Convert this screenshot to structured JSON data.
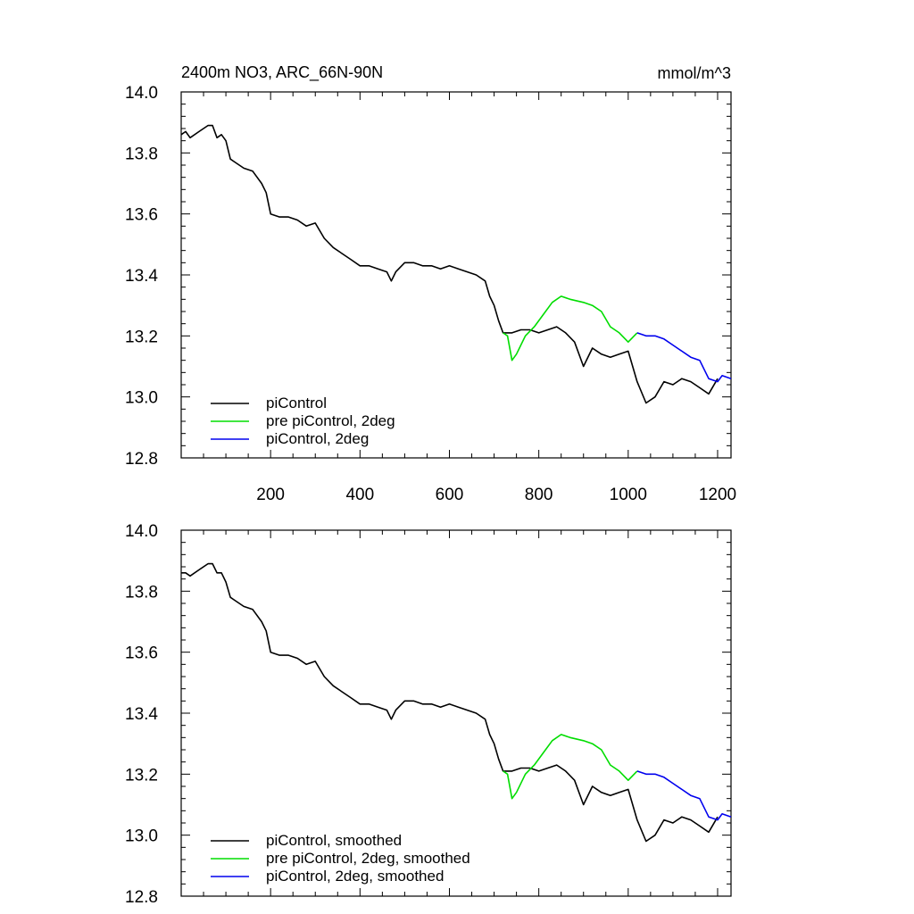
{
  "chart_data": [
    {
      "type": "line",
      "title": "2400m NO3, ARC_66N-90N",
      "units": "mmol/m^3",
      "xlim": [
        0,
        1230
      ],
      "ylim": [
        12.8,
        14.0
      ],
      "x_ticks": [
        200,
        400,
        600,
        800,
        1000,
        1200
      ],
      "y_ticks": [
        "12.8",
        "13.0",
        "13.2",
        "13.4",
        "13.6",
        "13.8",
        "14.0"
      ],
      "x_tick_labels_shown": true,
      "grid": false,
      "legend_position": "bottom-left",
      "series": [
        {
          "name": "piControl",
          "color": "#000000",
          "points": [
            [
              0,
              13.86
            ],
            [
              10,
              13.87
            ],
            [
              20,
              13.85
            ],
            [
              40,
              13.87
            ],
            [
              60,
              13.89
            ],
            [
              70,
              13.89
            ],
            [
              80,
              13.85
            ],
            [
              90,
              13.86
            ],
            [
              100,
              13.84
            ],
            [
              110,
              13.78
            ],
            [
              120,
              13.77
            ],
            [
              140,
              13.75
            ],
            [
              160,
              13.74
            ],
            [
              180,
              13.7
            ],
            [
              190,
              13.67
            ],
            [
              200,
              13.6
            ],
            [
              220,
              13.59
            ],
            [
              240,
              13.59
            ],
            [
              260,
              13.58
            ],
            [
              280,
              13.56
            ],
            [
              300,
              13.57
            ],
            [
              320,
              13.52
            ],
            [
              340,
              13.49
            ],
            [
              360,
              13.47
            ],
            [
              380,
              13.45
            ],
            [
              400,
              13.43
            ],
            [
              420,
              13.43
            ],
            [
              440,
              13.42
            ],
            [
              460,
              13.41
            ],
            [
              470,
              13.38
            ],
            [
              480,
              13.41
            ],
            [
              500,
              13.44
            ],
            [
              520,
              13.44
            ],
            [
              540,
              13.43
            ],
            [
              560,
              13.43
            ],
            [
              580,
              13.42
            ],
            [
              600,
              13.43
            ],
            [
              620,
              13.42
            ],
            [
              640,
              13.41
            ],
            [
              660,
              13.4
            ],
            [
              680,
              13.38
            ],
            [
              690,
              13.33
            ],
            [
              700,
              13.3
            ],
            [
              710,
              13.25
            ],
            [
              720,
              13.21
            ],
            [
              740,
              13.21
            ],
            [
              760,
              13.22
            ],
            [
              780,
              13.22
            ],
            [
              800,
              13.21
            ],
            [
              820,
              13.22
            ],
            [
              840,
              13.23
            ],
            [
              860,
              13.21
            ],
            [
              880,
              13.18
            ],
            [
              900,
              13.1
            ],
            [
              920,
              13.16
            ],
            [
              940,
              13.14
            ],
            [
              960,
              13.13
            ],
            [
              980,
              13.14
            ],
            [
              1000,
              13.15
            ],
            [
              1020,
              13.05
            ],
            [
              1040,
              12.98
            ],
            [
              1060,
              13.0
            ],
            [
              1080,
              13.05
            ],
            [
              1100,
              13.04
            ],
            [
              1120,
              13.06
            ],
            [
              1140,
              13.05
            ],
            [
              1160,
              13.03
            ],
            [
              1180,
              13.01
            ],
            [
              1200,
              13.06
            ]
          ]
        },
        {
          "name": "pre piControl, 2deg",
          "color": "#00dd00",
          "points": [
            [
              720,
              13.21
            ],
            [
              730,
              13.2
            ],
            [
              740,
              13.12
            ],
            [
              750,
              13.14
            ],
            [
              770,
              13.2
            ],
            [
              790,
              13.23
            ],
            [
              810,
              13.27
            ],
            [
              830,
              13.31
            ],
            [
              850,
              13.33
            ],
            [
              870,
              13.32
            ],
            [
              900,
              13.31
            ],
            [
              920,
              13.3
            ],
            [
              940,
              13.28
            ],
            [
              960,
              13.23
            ],
            [
              980,
              13.21
            ],
            [
              1000,
              13.18
            ],
            [
              1020,
              13.21
            ]
          ]
        },
        {
          "name": "piControl, 2deg",
          "color": "#0000ee",
          "points": [
            [
              1020,
              13.21
            ],
            [
              1040,
              13.2
            ],
            [
              1060,
              13.2
            ],
            [
              1080,
              13.19
            ],
            [
              1100,
              13.17
            ],
            [
              1120,
              13.15
            ],
            [
              1140,
              13.13
            ],
            [
              1160,
              13.12
            ],
            [
              1180,
              13.06
            ],
            [
              1200,
              13.05
            ],
            [
              1210,
              13.07
            ],
            [
              1230,
              13.06
            ]
          ]
        }
      ]
    },
    {
      "type": "line",
      "xlim": [
        0,
        1230
      ],
      "ylim": [
        12.8,
        14.0
      ],
      "x_ticks": [
        200,
        400,
        600,
        800,
        1000,
        1200
      ],
      "y_ticks": [
        "12.8",
        "13.0",
        "13.2",
        "13.4",
        "13.6",
        "13.8",
        "14.0"
      ],
      "x_tick_labels_shown": false,
      "grid": false,
      "legend_position": "bottom-left",
      "series": [
        {
          "name": "piControl, smoothed",
          "color": "#000000",
          "points": [
            [
              0,
              13.86
            ],
            [
              10,
              13.86
            ],
            [
              20,
              13.85
            ],
            [
              40,
              13.87
            ],
            [
              60,
              13.89
            ],
            [
              70,
              13.89
            ],
            [
              80,
              13.86
            ],
            [
              90,
              13.86
            ],
            [
              100,
              13.83
            ],
            [
              110,
              13.78
            ],
            [
              120,
              13.77
            ],
            [
              140,
              13.75
            ],
            [
              160,
              13.74
            ],
            [
              180,
              13.7
            ],
            [
              190,
              13.67
            ],
            [
              200,
              13.6
            ],
            [
              220,
              13.59
            ],
            [
              240,
              13.59
            ],
            [
              260,
              13.58
            ],
            [
              280,
              13.56
            ],
            [
              300,
              13.57
            ],
            [
              320,
              13.52
            ],
            [
              340,
              13.49
            ],
            [
              360,
              13.47
            ],
            [
              380,
              13.45
            ],
            [
              400,
              13.43
            ],
            [
              420,
              13.43
            ],
            [
              440,
              13.42
            ],
            [
              460,
              13.41
            ],
            [
              470,
              13.38
            ],
            [
              480,
              13.41
            ],
            [
              500,
              13.44
            ],
            [
              520,
              13.44
            ],
            [
              540,
              13.43
            ],
            [
              560,
              13.43
            ],
            [
              580,
              13.42
            ],
            [
              600,
              13.43
            ],
            [
              620,
              13.42
            ],
            [
              640,
              13.41
            ],
            [
              660,
              13.4
            ],
            [
              680,
              13.38
            ],
            [
              690,
              13.33
            ],
            [
              700,
              13.3
            ],
            [
              710,
              13.25
            ],
            [
              720,
              13.21
            ],
            [
              740,
              13.21
            ],
            [
              760,
              13.22
            ],
            [
              780,
              13.22
            ],
            [
              800,
              13.21
            ],
            [
              820,
              13.22
            ],
            [
              840,
              13.23
            ],
            [
              860,
              13.21
            ],
            [
              880,
              13.18
            ],
            [
              900,
              13.1
            ],
            [
              920,
              13.16
            ],
            [
              940,
              13.14
            ],
            [
              960,
              13.13
            ],
            [
              980,
              13.14
            ],
            [
              1000,
              13.15
            ],
            [
              1020,
              13.05
            ],
            [
              1040,
              12.98
            ],
            [
              1060,
              13.0
            ],
            [
              1080,
              13.05
            ],
            [
              1100,
              13.04
            ],
            [
              1120,
              13.06
            ],
            [
              1140,
              13.05
            ],
            [
              1160,
              13.03
            ],
            [
              1180,
              13.01
            ],
            [
              1200,
              13.06
            ]
          ]
        },
        {
          "name": "pre piControl, 2deg, smoothed",
          "color": "#00dd00",
          "points": [
            [
              720,
              13.21
            ],
            [
              730,
              13.2
            ],
            [
              740,
              13.12
            ],
            [
              750,
              13.14
            ],
            [
              770,
              13.2
            ],
            [
              790,
              13.23
            ],
            [
              810,
              13.27
            ],
            [
              830,
              13.31
            ],
            [
              850,
              13.33
            ],
            [
              870,
              13.32
            ],
            [
              900,
              13.31
            ],
            [
              920,
              13.3
            ],
            [
              940,
              13.28
            ],
            [
              960,
              13.23
            ],
            [
              980,
              13.21
            ],
            [
              1000,
              13.18
            ],
            [
              1020,
              13.21
            ]
          ]
        },
        {
          "name": "piControl, 2deg, smoothed",
          "color": "#0000ee",
          "points": [
            [
              1020,
              13.21
            ],
            [
              1040,
              13.2
            ],
            [
              1060,
              13.2
            ],
            [
              1080,
              13.19
            ],
            [
              1100,
              13.17
            ],
            [
              1120,
              13.15
            ],
            [
              1140,
              13.13
            ],
            [
              1160,
              13.12
            ],
            [
              1180,
              13.06
            ],
            [
              1200,
              13.05
            ],
            [
              1210,
              13.07
            ],
            [
              1230,
              13.06
            ]
          ]
        }
      ]
    }
  ]
}
